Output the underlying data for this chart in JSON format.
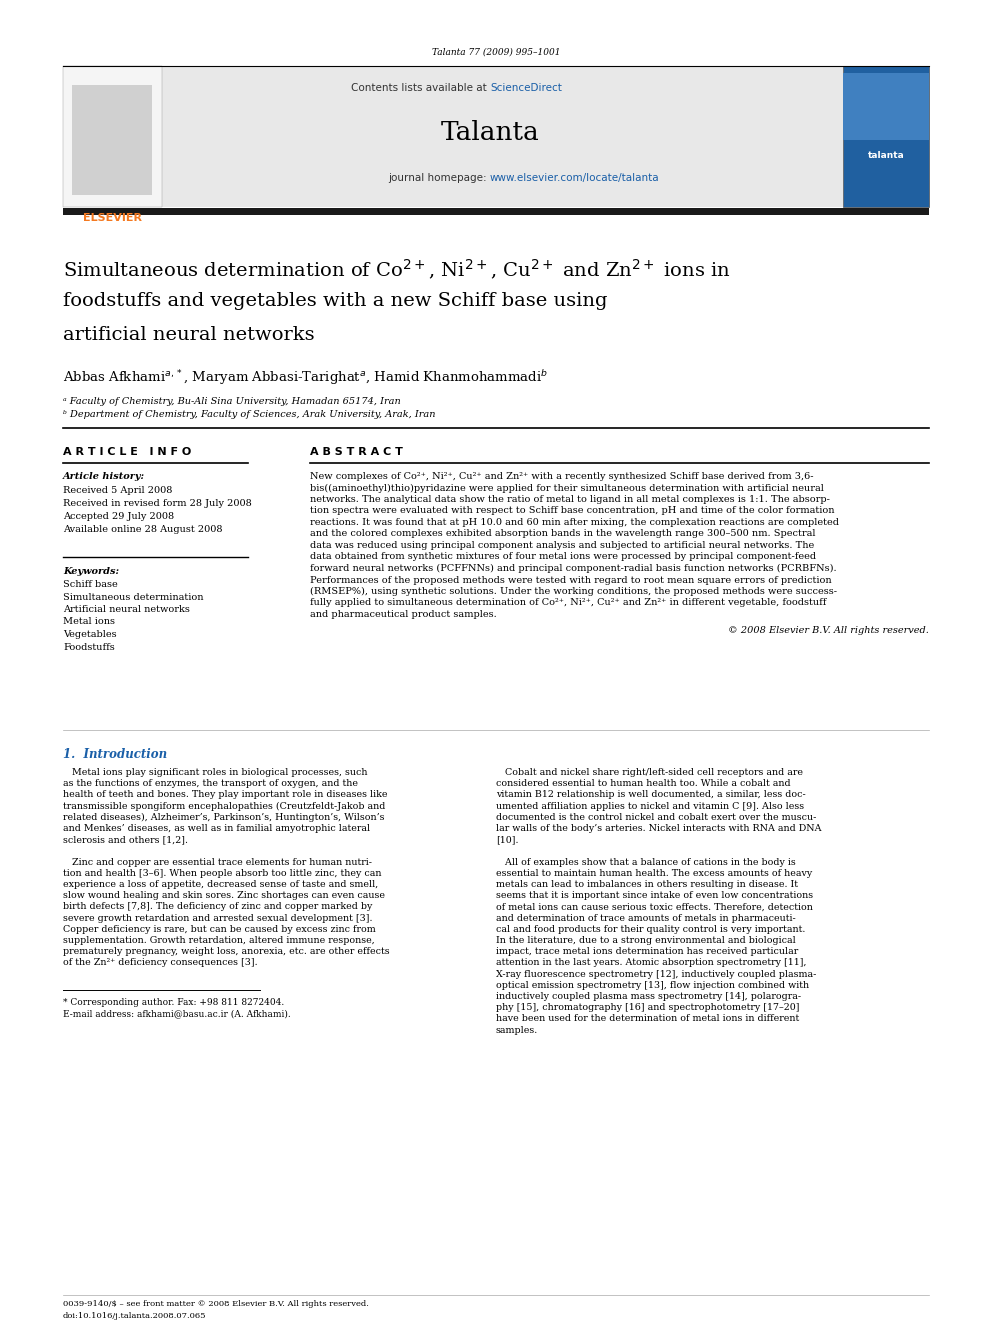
{
  "page_width": 9.92,
  "page_height": 13.23,
  "background_color": "#ffffff",
  "journal_ref": "Talanta 77 (2009) 995–1001",
  "header_bg": "#e8e8e8",
  "contents_text": "Contents lists available at ",
  "sciencedirect_text": "ScienceDirect",
  "sciencedirect_color": "#1a5fa8",
  "journal_name": "Talanta",
  "homepage_label": "journal homepage: ",
  "homepage_url": "www.elsevier.com/locate/talanta",
  "homepage_url_color": "#1a5fa8",
  "dark_bar_color": "#1a1a1a",
  "elsevier_color": "#f47920",
  "article_title_line1": "Simultaneous determination of Co$^{2+}$, Ni$^{2+}$, Cu$^{2+}$ and Zn$^{2+}$ ions in",
  "article_title_line2": "foodstuffs and vegetables with a new Schiff base using",
  "article_title_line3": "artificial neural networks",
  "authors": "Abbas Afkhami$^{a,*}$, Maryam Abbasi-Tarighat$^{a}$, Hamid Khanmohammadi$^{b}$",
  "affil_a": "ᵃ Faculty of Chemistry, Bu-Ali Sina University, Hamadan 65174, Iran",
  "affil_b": "ᵇ Department of Chemistry, Faculty of Sciences, Arak University, Arak, Iran",
  "article_info_header": "A R T I C L E   I N F O",
  "abstract_header": "A B S T R A C T",
  "article_history_label": "Article history:",
  "received": "Received 5 April 2008",
  "received_revised": "Received in revised form 28 July 2008",
  "accepted": "Accepted 29 July 2008",
  "available": "Available online 28 August 2008",
  "keywords_label": "Keywords:",
  "keywords": [
    "Schiff base",
    "Simultaneous determination",
    "Artificial neural networks",
    "Metal ions",
    "Vegetables",
    "Foodstuffs"
  ],
  "abstract_lines": [
    "New complexes of Co²⁺, Ni²⁺, Cu²⁺ and Zn²⁺ with a recently synthesized Schiff base derived from 3,6-",
    "bis((aminoethyl)thio)pyridazine were applied for their simultaneous determination with artificial neural",
    "networks. The analytical data show the ratio of metal to ligand in all metal complexes is 1:1. The absorp-",
    "tion spectra were evaluated with respect to Schiff base concentration, pH and time of the color formation",
    "reactions. It was found that at pH 10.0 and 60 min after mixing, the complexation reactions are completed",
    "and the colored complexes exhibited absorption bands in the wavelength range 300–500 nm. Spectral",
    "data was reduced using principal component analysis and subjected to artificial neural networks. The",
    "data obtained from synthetic mixtures of four metal ions were processed by principal component-feed",
    "forward neural networks (PCFFNNs) and principal component-radial basis function networks (PCRBFNs).",
    "Performances of the proposed methods were tested with regard to root mean square errors of prediction",
    "(RMSEP%), using synthetic solutions. Under the working conditions, the proposed methods were success-",
    "fully applied to simultaneous determination of Co²⁺, Ni²⁺, Cu²⁺ and Zn²⁺ in different vegetable, foodstuff",
    "and pharmaceutical product samples."
  ],
  "copyright_text": "© 2008 Elsevier B.V. All rights reserved.",
  "intro_header": "1.  Introduction",
  "intro_col1_lines": [
    "   Metal ions play significant roles in biological processes, such",
    "as the functions of enzymes, the transport of oxygen, and the",
    "health of teeth and bones. They play important role in diseases like",
    "transmissible spongiform encephalopathies (Creutzfeldt-Jakob and",
    "related diseases), Alzheimer’s, Parkinson’s, Huntington’s, Wilson’s",
    "and Menkes’ diseases, as well as in familial amyotrophic lateral",
    "sclerosis and others [1,2].",
    "",
    "   Zinc and copper are essential trace elements for human nutri-",
    "tion and health [3–6]. When people absorb too little zinc, they can",
    "experience a loss of appetite, decreased sense of taste and smell,",
    "slow wound healing and skin sores. Zinc shortages can even cause",
    "birth defects [7,8]. The deficiency of zinc and copper marked by",
    "severe growth retardation and arrested sexual development [3].",
    "Copper deficiency is rare, but can be caused by excess zinc from",
    "supplementation. Growth retardation, altered immune response,",
    "prematurely pregnancy, weight loss, anorexia, etc. are other effects",
    "of the Zn²⁺ deficiency consequences [3]."
  ],
  "intro_col2_lines": [
    "   Cobalt and nickel share right/left-sided cell receptors and are",
    "considered essential to human health too. While a cobalt and",
    "vitamin B12 relationship is well documented, a similar, less doc-",
    "umented affiliation applies to nickel and vitamin C [9]. Also less",
    "documented is the control nickel and cobalt exert over the muscu-",
    "lar walls of the body’s arteries. Nickel interacts with RNA and DNA",
    "[10].",
    "",
    "   All of examples show that a balance of cations in the body is",
    "essential to maintain human health. The excess amounts of heavy",
    "metals can lead to imbalances in others resulting in disease. It",
    "seems that it is important since intake of even low concentrations",
    "of metal ions can cause serious toxic effects. Therefore, detection",
    "and determination of trace amounts of metals in pharmaceuti-",
    "cal and food products for their quality control is very important.",
    "In the literature, due to a strong environmental and biological",
    "impact, trace metal ions determination has received particular",
    "attention in the last years. Atomic absorption spectrometry [11],",
    "X-ray fluorescence spectrometry [12], inductively coupled plasma-",
    "optical emission spectrometry [13], flow injection combined with",
    "inductively coupled plasma mass spectrometry [14], polarogra-",
    "phy [15], chromatography [16] and spectrophotometry [17–20]",
    "have been used for the determination of metal ions in different",
    "samples."
  ],
  "footnote_star": "* Corresponding author. Fax: +98 811 8272404.",
  "footnote_email": "E-mail address: afkhami@basu.ac.ir (A. Afkhami).",
  "footer_issn": "0039-9140/$ – see front matter © 2008 Elsevier B.V. All rights reserved.",
  "footer_doi": "doi:10.1016/j.talanta.2008.07.065"
}
